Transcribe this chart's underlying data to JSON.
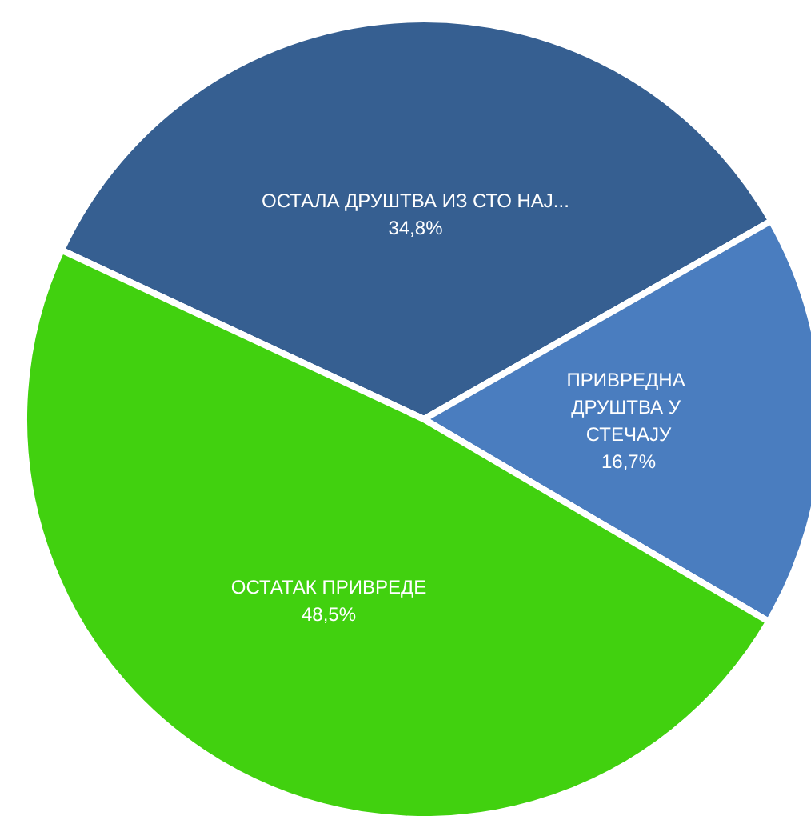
{
  "chart_data": {
    "type": "pie",
    "categories": [
      "ОСТАЛА ДРУШТВА ИЗ СТО НАЈ...",
      "ПРИВРЕДНА ДРУШТВА У СТЕЧАЈУ",
      "ОСТАТАК ПРИВРЕДЕ"
    ],
    "values": [
      34.8,
      16.7,
      48.5
    ],
    "colors": [
      "#365f91",
      "#4a7dbf",
      "#41d10f"
    ],
    "value_labels": [
      "34,8%",
      "16,7%",
      "48,5%"
    ],
    "legend": false
  }
}
